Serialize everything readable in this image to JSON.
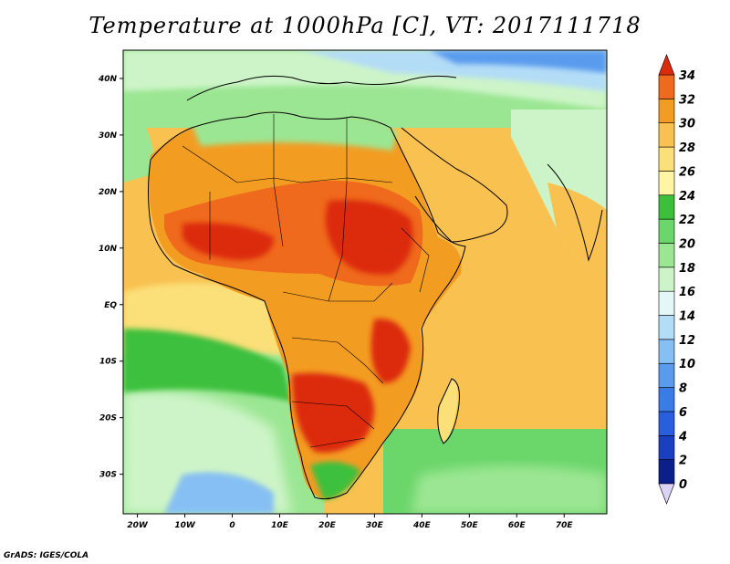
{
  "title": "Temperature at 1000hPa [C], VT: 2017111718",
  "credit": "GrADS: IGES/COLA",
  "map": {
    "lon_range": [
      -23,
      79
    ],
    "lat_range": [
      -37,
      45
    ],
    "lon_ticks": [
      {
        "value": -20,
        "label": "20W"
      },
      {
        "value": -10,
        "label": "10W"
      },
      {
        "value": 0,
        "label": "0"
      },
      {
        "value": 10,
        "label": "10E"
      },
      {
        "value": 20,
        "label": "20E"
      },
      {
        "value": 30,
        "label": "30E"
      },
      {
        "value": 40,
        "label": "40E"
      },
      {
        "value": 50,
        "label": "50E"
      },
      {
        "value": 60,
        "label": "60E"
      },
      {
        "value": 70,
        "label": "70E"
      }
    ],
    "lat_ticks": [
      {
        "value": 40,
        "label": "40N"
      },
      {
        "value": 30,
        "label": "30N"
      },
      {
        "value": 20,
        "label": "20N"
      },
      {
        "value": 10,
        "label": "10N"
      },
      {
        "value": 0,
        "label": "EQ"
      },
      {
        "value": -10,
        "label": "10S"
      },
      {
        "value": -20,
        "label": "20S"
      },
      {
        "value": -30,
        "label": "30S"
      }
    ]
  },
  "colorbar": {
    "levels": [
      0,
      2,
      4,
      6,
      8,
      10,
      12,
      14,
      16,
      18,
      20,
      22,
      24,
      26,
      28,
      30,
      32,
      34
    ],
    "colors": [
      "#0a1f8c",
      "#1b3fc2",
      "#2a5ee0",
      "#3b7be8",
      "#5a9bee",
      "#86bff3",
      "#b3dcf7",
      "#e3f7f7",
      "#cdf4c8",
      "#9be693",
      "#6bd66a",
      "#3cc03c",
      "#fff5a5",
      "#fbdf78",
      "#f9c150",
      "#f39c22",
      "#ef6a1c",
      "#dc2a0e"
    ]
  }
}
